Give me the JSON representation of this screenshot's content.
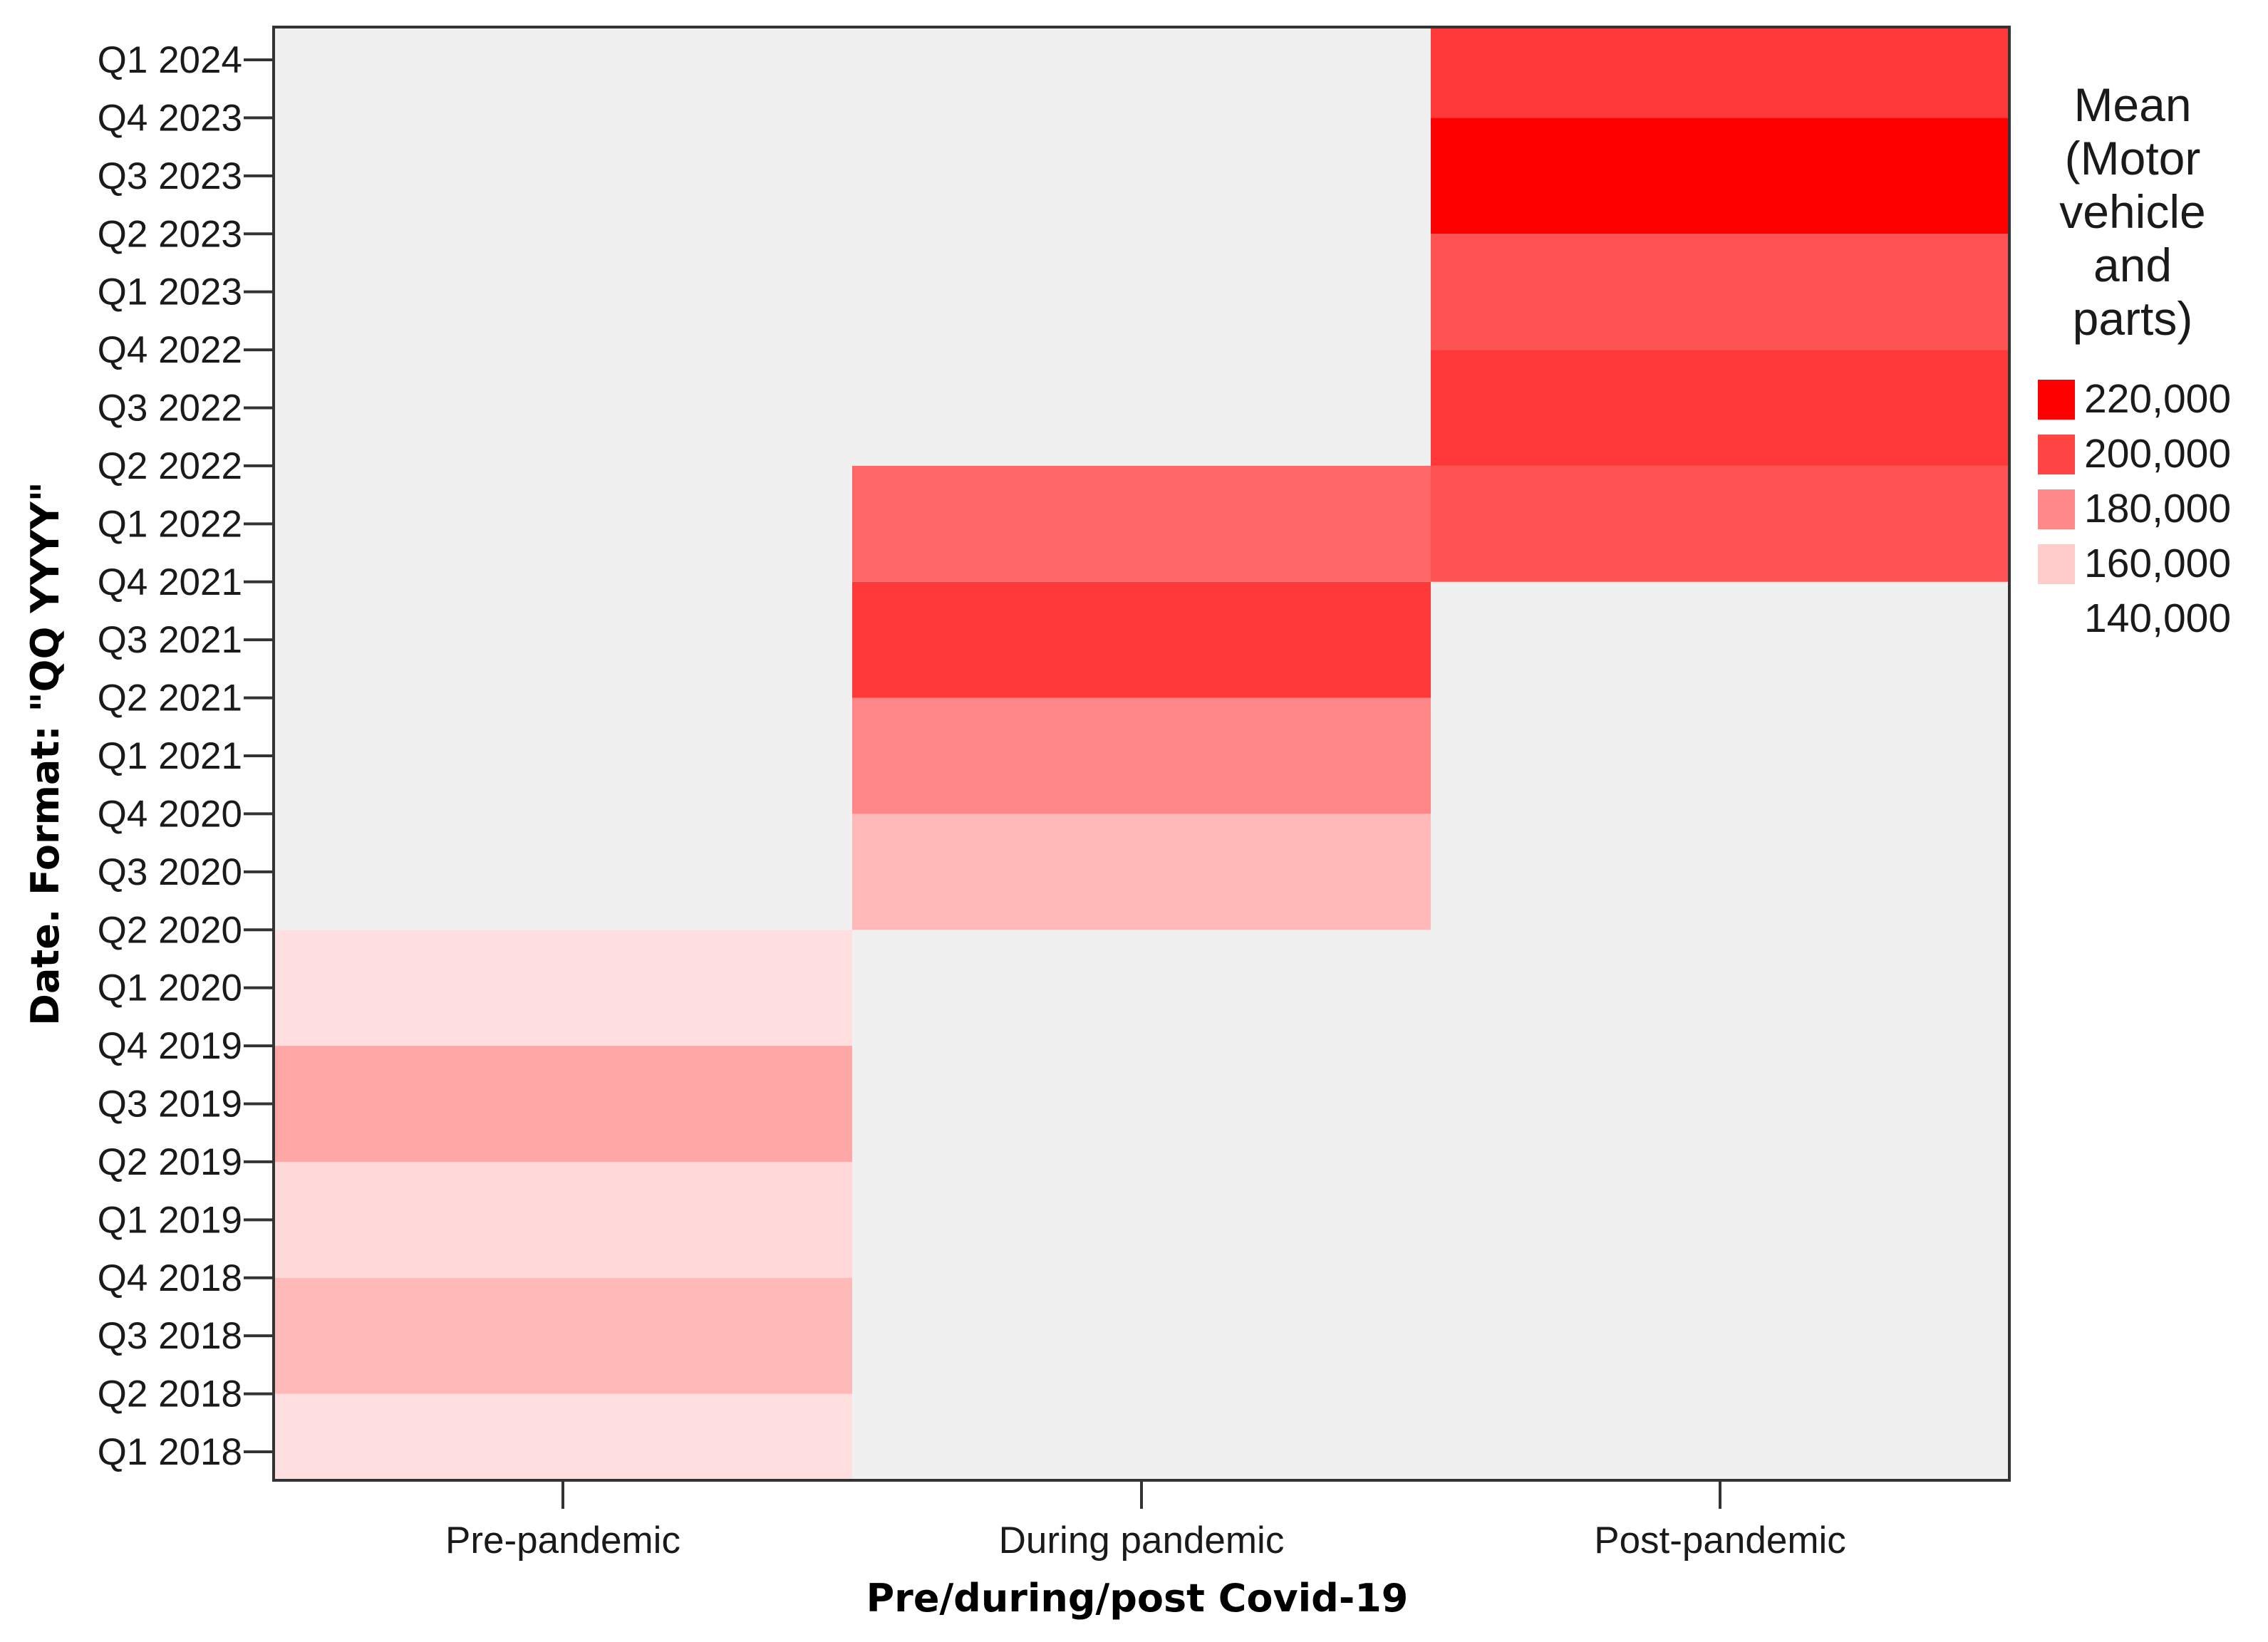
{
  "chart_data": {
    "type": "heatmap",
    "xlabel": "Pre/during/post Covid-19",
    "ylabel": "Date.  Format:  \"QQ YYYY\"",
    "x_categories": [
      "Pre-pandemic",
      "During pandemic",
      "Post-pandemic"
    ],
    "y_categories": [
      "Q1 2018",
      "Q2 2018",
      "Q3 2018",
      "Q4 2018",
      "Q1 2019",
      "Q2 2019",
      "Q3 2019",
      "Q4 2019",
      "Q1 2020",
      "Q2 2020",
      "Q3 2020",
      "Q4 2020",
      "Q1 2021",
      "Q2 2021",
      "Q3 2021",
      "Q4 2021",
      "Q1 2022",
      "Q2 2022",
      "Q3 2022",
      "Q4 2022",
      "Q1 2023",
      "Q2 2023",
      "Q3 2023",
      "Q4 2023",
      "Q1 2024"
    ],
    "cells": [
      {
        "x": "Pre-pandemic",
        "y_from": "Q1 2018",
        "y_to": "Q2 2018",
        "value": 150000
      },
      {
        "x": "Pre-pandemic",
        "y_from": "Q2 2018",
        "y_to": "Q4 2018",
        "value": 162000
      },
      {
        "x": "Pre-pandemic",
        "y_from": "Q4 2018",
        "y_to": "Q2 2019",
        "value": 152000
      },
      {
        "x": "Pre-pandemic",
        "y_from": "Q2 2019",
        "y_to": "Q4 2019",
        "value": 168000
      },
      {
        "x": "Pre-pandemic",
        "y_from": "Q4 2019",
        "y_to": "Q2 2020",
        "value": 150000
      },
      {
        "x": "During pandemic",
        "y_from": "Q2 2020",
        "y_to": "Q4 2020",
        "value": 162000
      },
      {
        "x": "During pandemic",
        "y_from": "Q4 2020",
        "y_to": "Q2 2021",
        "value": 178000
      },
      {
        "x": "During pandemic",
        "y_from": "Q2 2021",
        "y_to": "Q4 2021",
        "value": 202000
      },
      {
        "x": "During pandemic",
        "y_from": "Q4 2021",
        "y_to": "Q2 2022",
        "value": 188000
      },
      {
        "x": "Post-pandemic",
        "y_from": "Q4 2021",
        "y_to": "Q2 2022",
        "value": 194000
      },
      {
        "x": "Post-pandemic",
        "y_from": "Q2 2022",
        "y_to": "Q4 2022",
        "value": 202000
      },
      {
        "x": "Post-pandemic",
        "y_from": "Q4 2022",
        "y_to": "Q2 2023",
        "value": 194000
      },
      {
        "x": "Post-pandemic",
        "y_from": "Q2 2023",
        "y_to": "Q4 2023",
        "value": 220000
      },
      {
        "x": "Post-pandemic",
        "y_from": "Q4 2023",
        "y_to": "Q1 2024",
        "value": 202000
      }
    ],
    "legend": {
      "title": [
        "Mean",
        "(Motor",
        "vehicle",
        "and",
        "parts)"
      ],
      "labels": [
        "220,000",
        "200,000",
        "180,000",
        "160,000",
        "140,000"
      ],
      "swatch_colors": [
        "#ff0000",
        "#ff4444",
        "#ff8888",
        "#ffcccc"
      ],
      "placement": "right"
    },
    "value_range": [
      140000,
      220000
    ],
    "color_low": "#ffffff",
    "color_high": "#ff0000",
    "empty_color": "#f0f0f0"
  }
}
